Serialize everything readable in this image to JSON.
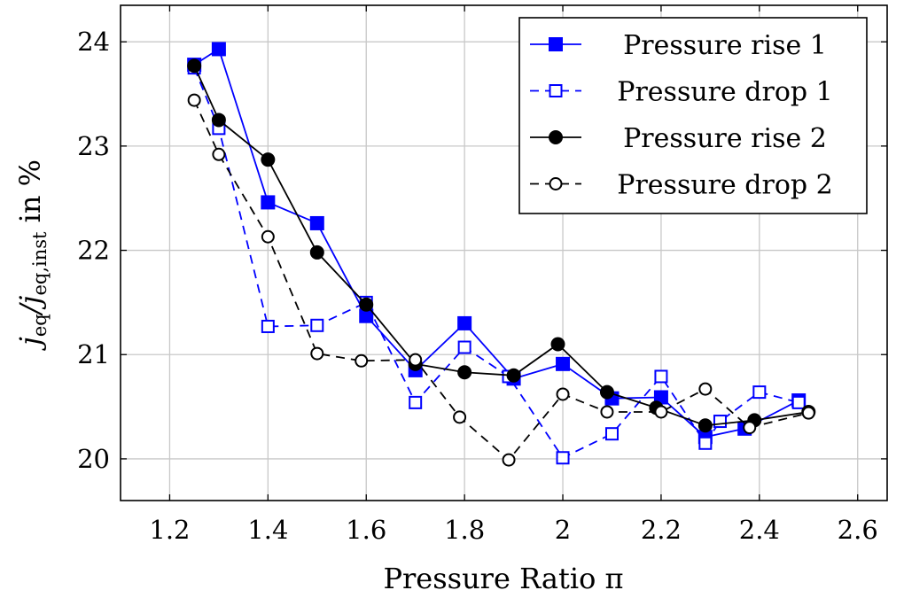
{
  "chart_data": {
    "type": "line",
    "xlabel": "Pressure Ratio π",
    "ylabel_main": "j",
    "ylabel_sub1": "eq",
    "ylabel_mid": "/j",
    "ylabel_sub2": "eq,inst",
    "ylabel_end": " in %",
    "xlim": [
      1.1,
      2.66
    ],
    "ylim": [
      19.6,
      24.35
    ],
    "xticks": [
      1.2,
      1.4,
      1.6,
      1.8,
      2.0,
      2.2,
      2.4,
      2.6
    ],
    "xtick_labels": [
      "1.2",
      "1.4",
      "1.6",
      "1.8",
      "2",
      "2.2",
      "2.4",
      "2.6"
    ],
    "yticks": [
      20,
      21,
      22,
      23,
      24
    ],
    "ytick_labels": [
      "20",
      "21",
      "22",
      "23",
      "24"
    ],
    "grid": true,
    "legend_position": "top-right",
    "series": [
      {
        "name": "Pressure rise 1",
        "color": "#0000ff",
        "dashed": false,
        "marker": "square",
        "filled": true,
        "x": [
          1.25,
          1.3,
          1.4,
          1.5,
          1.6,
          1.7,
          1.8,
          1.9,
          2.0,
          2.1,
          2.2,
          2.29,
          2.37,
          2.48
        ],
        "y": [
          23.78,
          23.93,
          22.46,
          22.26,
          21.37,
          20.85,
          21.3,
          20.77,
          20.91,
          20.58,
          20.59,
          20.21,
          20.29,
          20.56
        ]
      },
      {
        "name": "Pressure drop 1",
        "color": "#0000ff",
        "dashed": true,
        "marker": "square",
        "filled": false,
        "x": [
          1.25,
          1.3,
          1.4,
          1.5,
          1.6,
          1.7,
          1.8,
          1.89,
          2.0,
          2.1,
          2.2,
          2.29,
          2.32,
          2.4,
          2.48
        ],
        "y": [
          23.75,
          23.17,
          21.27,
          21.28,
          21.5,
          20.54,
          21.07,
          20.79,
          20.01,
          20.24,
          20.79,
          20.15,
          20.36,
          20.64,
          20.54
        ]
      },
      {
        "name": "Pressure rise 2",
        "color": "#000000",
        "dashed": false,
        "marker": "circle",
        "filled": true,
        "x": [
          1.25,
          1.3,
          1.4,
          1.5,
          1.6,
          1.7,
          1.8,
          1.9,
          1.99,
          2.09,
          2.19,
          2.29,
          2.39,
          2.5
        ],
        "y": [
          23.77,
          23.25,
          22.87,
          21.98,
          21.48,
          20.91,
          20.83,
          20.8,
          21.1,
          20.64,
          20.49,
          20.32,
          20.37,
          20.45
        ]
      },
      {
        "name": "Pressure drop 2",
        "color": "#000000",
        "dashed": true,
        "marker": "circle",
        "filled": false,
        "x": [
          1.25,
          1.3,
          1.4,
          1.5,
          1.59,
          1.7,
          1.79,
          1.89,
          2.0,
          2.09,
          2.2,
          2.29,
          2.38,
          2.5
        ],
        "y": [
          23.44,
          22.92,
          22.13,
          21.01,
          20.94,
          20.95,
          20.4,
          19.99,
          20.62,
          20.45,
          20.45,
          20.67,
          20.3,
          20.44
        ]
      }
    ]
  }
}
